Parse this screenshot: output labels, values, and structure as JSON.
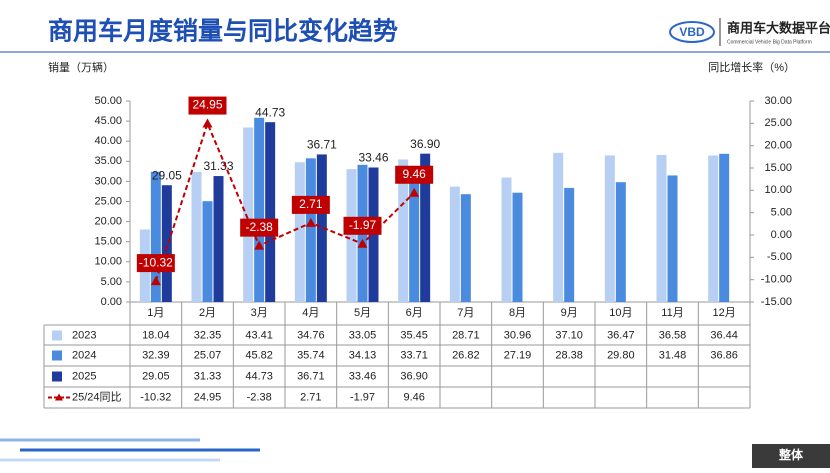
{
  "chart_data": {
    "type": "bar_line",
    "title": "商用车月度销量与同比变化趋势",
    "logo_text": "商用车大数据平台",
    "logo_subtext": "Commercial Vehicle Big Data Platform",
    "logo_mark": "VBD",
    "footer_tag": "整体",
    "y_label": "销量（万辆）",
    "y2_label": "同比增长率（%）",
    "categories": [
      "1月",
      "2月",
      "3月",
      "4月",
      "5月",
      "6月",
      "7月",
      "8月",
      "9月",
      "10月",
      "11月",
      "12月"
    ],
    "ylim": [
      0,
      50
    ],
    "yticks": [
      {
        "value": 0,
        "label": "0.00"
      },
      {
        "value": 5,
        "label": "5.00"
      },
      {
        "value": 10,
        "label": "10.00"
      },
      {
        "value": 15,
        "label": "15.00"
      },
      {
        "value": 20,
        "label": "20.00"
      },
      {
        "value": 25,
        "label": "25.00"
      },
      {
        "value": 30,
        "label": "30.00"
      },
      {
        "value": 35,
        "label": "35.00"
      },
      {
        "value": 40,
        "label": "40.00"
      },
      {
        "value": 45,
        "label": "45.00"
      },
      {
        "value": 50,
        "label": "50.00"
      }
    ],
    "y2lim": [
      -15,
      30
    ],
    "y2ticks": [
      {
        "value": -15,
        "label": "-15.00"
      },
      {
        "value": -10,
        "label": "-10.00"
      },
      {
        "value": -5,
        "label": "-5.00"
      },
      {
        "value": 0,
        "label": "0.00"
      },
      {
        "value": 5,
        "label": "5.00"
      },
      {
        "value": 10,
        "label": "10.00"
      },
      {
        "value": 15,
        "label": "15.00"
      },
      {
        "value": 20,
        "label": "20.00"
      },
      {
        "value": 25,
        "label": "25.00"
      },
      {
        "value": 30,
        "label": "30.00"
      }
    ],
    "series": [
      {
        "name": "2023",
        "type": "bar",
        "color": "#b7cff2",
        "values": [
          18.04,
          32.35,
          43.41,
          34.76,
          33.05,
          35.45,
          28.71,
          30.96,
          37.1,
          36.47,
          36.58,
          36.44
        ],
        "value_labels": [
          "18.04",
          "32.35",
          "43.41",
          "34.76",
          "33.05",
          "35.45",
          "28.71",
          "30.96",
          "37.10",
          "36.47",
          "36.58",
          "36.44"
        ]
      },
      {
        "name": "2024",
        "type": "bar",
        "color": "#4a8be0",
        "values": [
          32.39,
          25.07,
          45.82,
          35.74,
          34.13,
          33.71,
          26.82,
          27.19,
          28.38,
          29.8,
          31.48,
          36.86
        ],
        "value_labels": [
          "32.39",
          "25.07",
          "45.82",
          "35.74",
          "34.13",
          "33.71",
          "26.82",
          "27.19",
          "28.38",
          "29.80",
          "31.48",
          "36.86"
        ]
      },
      {
        "name": "2025",
        "type": "bar",
        "color": "#1f3c9c",
        "show_labels": true,
        "values": [
          29.05,
          31.33,
          44.73,
          36.71,
          33.46,
          36.9,
          null,
          null,
          null,
          null,
          null,
          null
        ],
        "value_labels": [
          "29.05",
          "31.33",
          "44.73",
          "36.71",
          "33.46",
          "36.90",
          null,
          null,
          null,
          null,
          null,
          null
        ]
      },
      {
        "name": "25/24同比",
        "type": "line",
        "axis": "y2",
        "color": "#c00000",
        "show_labels": true,
        "values": [
          -10.32,
          24.95,
          -2.38,
          2.71,
          -1.97,
          9.46,
          null,
          null,
          null,
          null,
          null,
          null
        ],
        "value_labels": [
          "-10.32",
          "24.95",
          "-2.38",
          "2.71",
          "-1.97",
          "9.46",
          null,
          null,
          null,
          null,
          null,
          null
        ]
      }
    ]
  }
}
